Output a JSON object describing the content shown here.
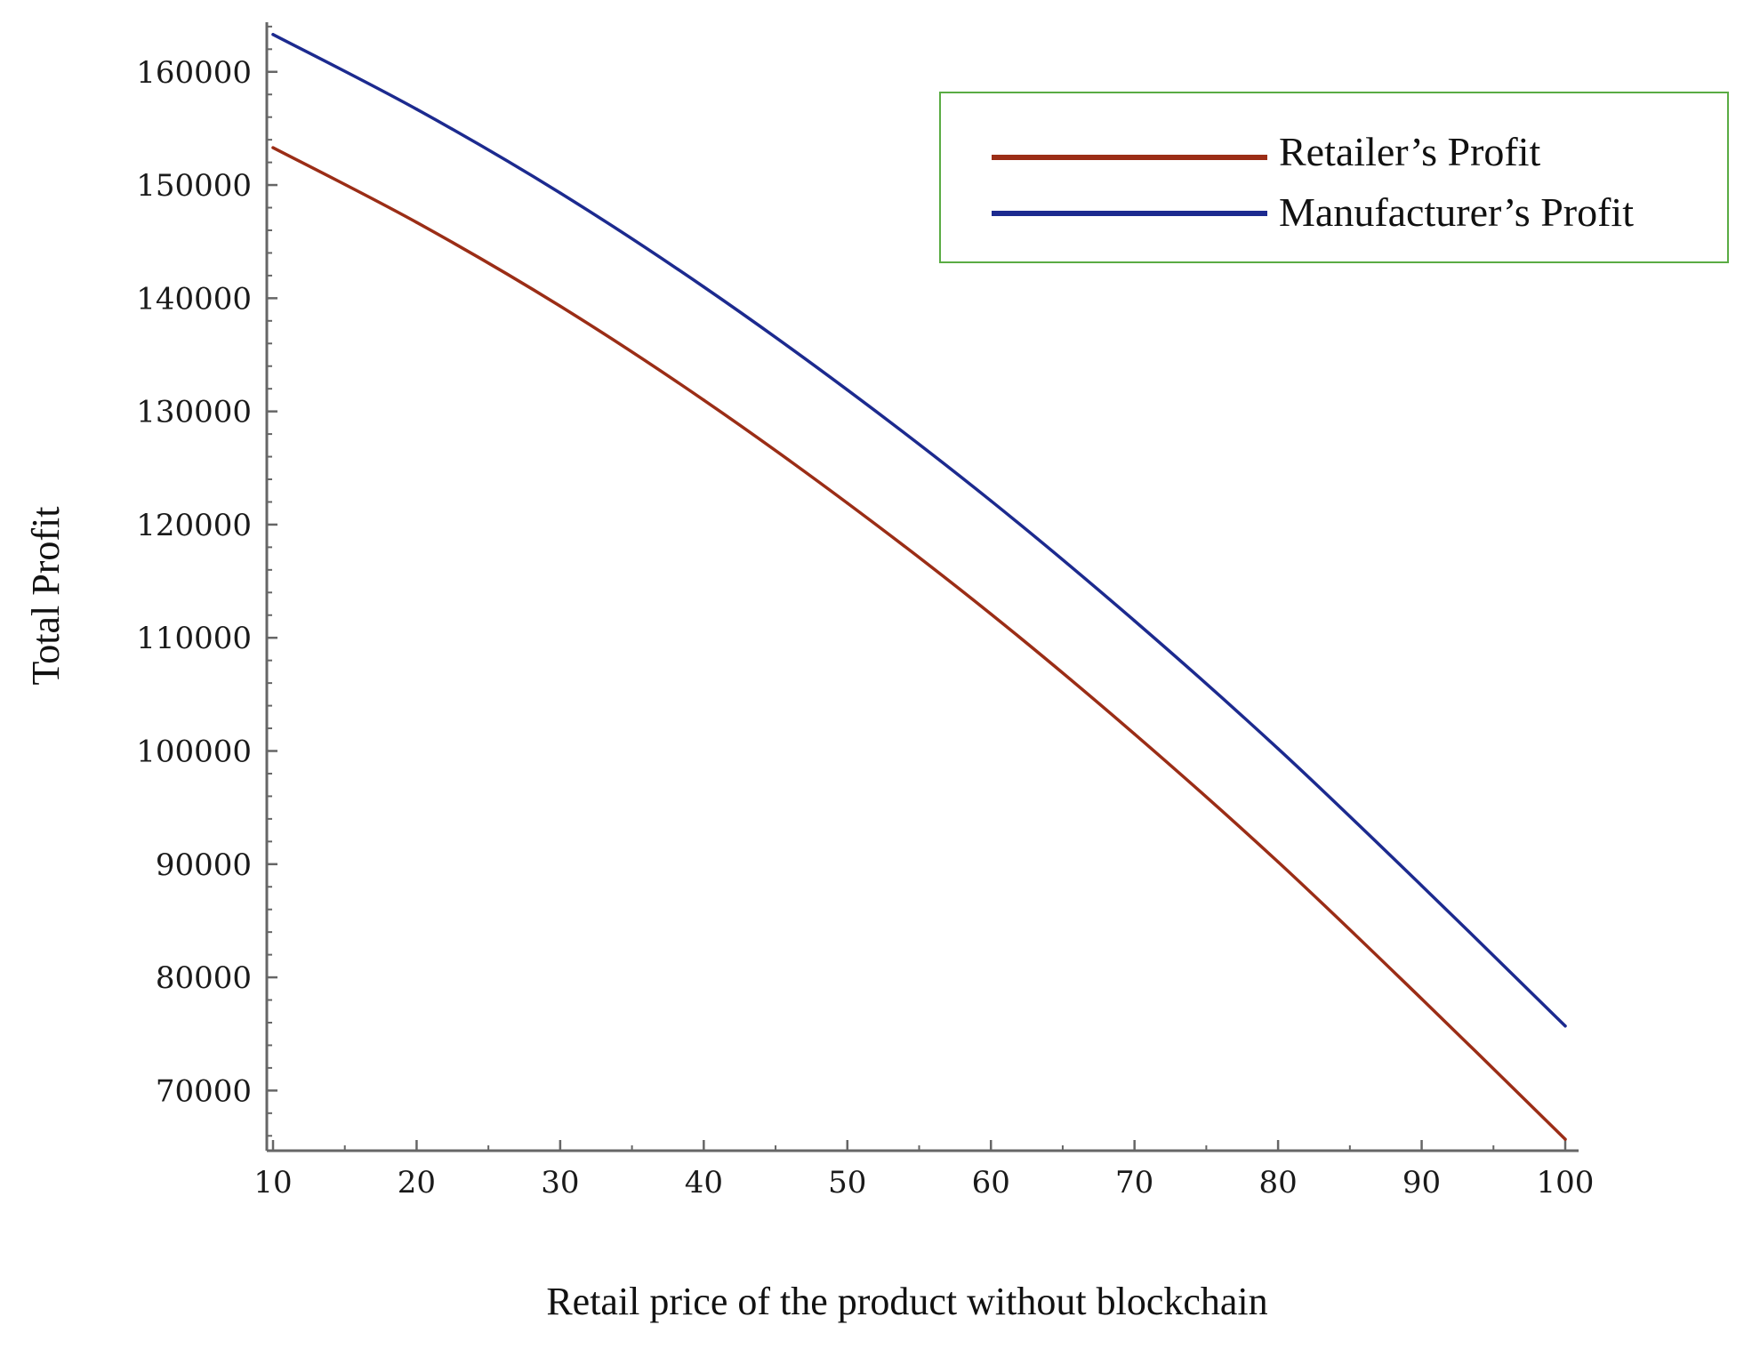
{
  "chart_data": {
    "type": "line",
    "xlabel": "Retail price of the product without blockchain",
    "ylabel": "Total Profit",
    "xlim": [
      10,
      100
    ],
    "ylim": [
      65000,
      164500
    ],
    "x_ticks": [
      10,
      20,
      30,
      40,
      50,
      60,
      70,
      80,
      90,
      100
    ],
    "y_ticks": [
      70000,
      80000,
      90000,
      100000,
      110000,
      120000,
      130000,
      140000,
      150000,
      160000
    ],
    "grid": false,
    "legend_position": "top-right",
    "series": [
      {
        "name": "Retailer’s Profit",
        "color": "#9b2d16",
        "x": [
          10,
          20,
          30,
          40,
          50,
          60,
          70,
          80,
          90,
          100
        ],
        "values": [
          153300,
          146700,
          139300,
          131000,
          121900,
          112100,
          101500,
          90200,
          78100,
          65700
        ]
      },
      {
        "name": "Manufacturer’s Profit",
        "color": "#1c2a8f",
        "x": [
          10,
          20,
          30,
          40,
          50,
          60,
          70,
          80,
          90,
          100
        ],
        "values": [
          163300,
          156700,
          149300,
          141000,
          131900,
          122100,
          111500,
          100200,
          88100,
          75700
        ]
      }
    ]
  }
}
